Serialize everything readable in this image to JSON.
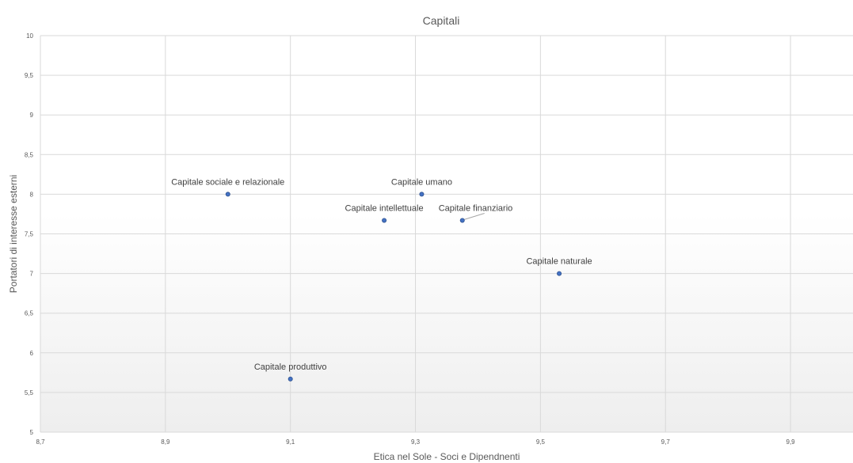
{
  "chart_data": {
    "type": "scatter",
    "title": "Capitali",
    "xlabel": "Etica nel Sole - Soci e Dipendnenti",
    "ylabel": "Portatori di interesse esterni",
    "xlim": [
      8.7,
      10.0
    ],
    "ylim": [
      5,
      10
    ],
    "x_ticks": [
      "8,7",
      "8,9",
      "9,1",
      "9,3",
      "9,5",
      "9,7",
      "9,9"
    ],
    "y_ticks": [
      "5",
      "5,5",
      "6",
      "6,5",
      "7",
      "7,5",
      "8",
      "8,5",
      "9",
      "9,5",
      "10"
    ],
    "grid": true,
    "legend": "none",
    "points": [
      {
        "label": "Capitale sociale e relazionale",
        "x": 9.0,
        "y": 8.0
      },
      {
        "label": "Capitale umano",
        "x": 9.31,
        "y": 8.0
      },
      {
        "label": "Capitale intellettuale",
        "x": 9.25,
        "y": 7.67
      },
      {
        "label": "Capitale finanziario",
        "x": 9.375,
        "y": 7.67
      },
      {
        "label": "Capitale naturale",
        "x": 9.53,
        "y": 7.0
      },
      {
        "label": "Capitale produttivo",
        "x": 9.1,
        "y": 5.67
      }
    ],
    "colors": {
      "marker": "#4472c4",
      "marker_edge": "#2f528f",
      "grid": "#d9d9d9",
      "text": "#595959"
    }
  }
}
